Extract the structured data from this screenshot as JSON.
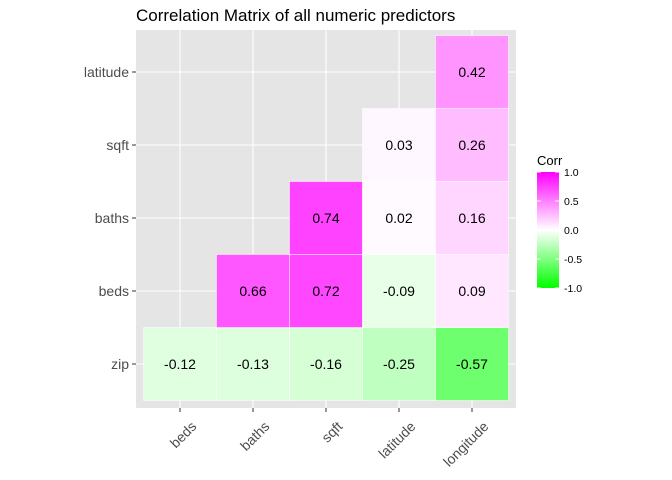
{
  "chart_data": {
    "type": "heatmap",
    "title": "Correlation Matrix of all numeric predictors",
    "x_categories": [
      "beds",
      "baths",
      "sqft",
      "latitude",
      "longitude"
    ],
    "y_categories": [
      "zip",
      "beds",
      "baths",
      "sqft",
      "latitude"
    ],
    "cells": [
      {
        "x": "beds",
        "y": "zip",
        "value": -0.12,
        "label": "-0.12"
      },
      {
        "x": "baths",
        "y": "zip",
        "value": -0.13,
        "label": "-0.13"
      },
      {
        "x": "sqft",
        "y": "zip",
        "value": -0.16,
        "label": "-0.16"
      },
      {
        "x": "latitude",
        "y": "zip",
        "value": -0.25,
        "label": "-0.25"
      },
      {
        "x": "longitude",
        "y": "zip",
        "value": -0.57,
        "label": "-0.57"
      },
      {
        "x": "baths",
        "y": "beds",
        "value": 0.66,
        "label": "0.66"
      },
      {
        "x": "sqft",
        "y": "beds",
        "value": 0.72,
        "label": "0.72"
      },
      {
        "x": "latitude",
        "y": "beds",
        "value": -0.09,
        "label": "-0.09"
      },
      {
        "x": "longitude",
        "y": "beds",
        "value": 0.09,
        "label": "0.09"
      },
      {
        "x": "sqft",
        "y": "baths",
        "value": 0.74,
        "label": "0.74"
      },
      {
        "x": "latitude",
        "y": "baths",
        "value": 0.02,
        "label": "0.02"
      },
      {
        "x": "longitude",
        "y": "baths",
        "value": 0.16,
        "label": "0.16"
      },
      {
        "x": "latitude",
        "y": "sqft",
        "value": 0.03,
        "label": "0.03"
      },
      {
        "x": "longitude",
        "y": "sqft",
        "value": 0.26,
        "label": "0.26"
      },
      {
        "x": "longitude",
        "y": "latitude",
        "value": 0.42,
        "label": "0.42"
      }
    ],
    "legend": {
      "title": "Corr",
      "ticks": [
        "1.0",
        "0.5",
        "0.0",
        "-0.5",
        "-1.0"
      ],
      "range": [
        -1,
        1
      ],
      "colors": {
        "low": "#00ff00",
        "mid": "#ffffff",
        "high": "#ff00ff"
      }
    },
    "panel_background": "#e5e5e5",
    "grid": true
  }
}
